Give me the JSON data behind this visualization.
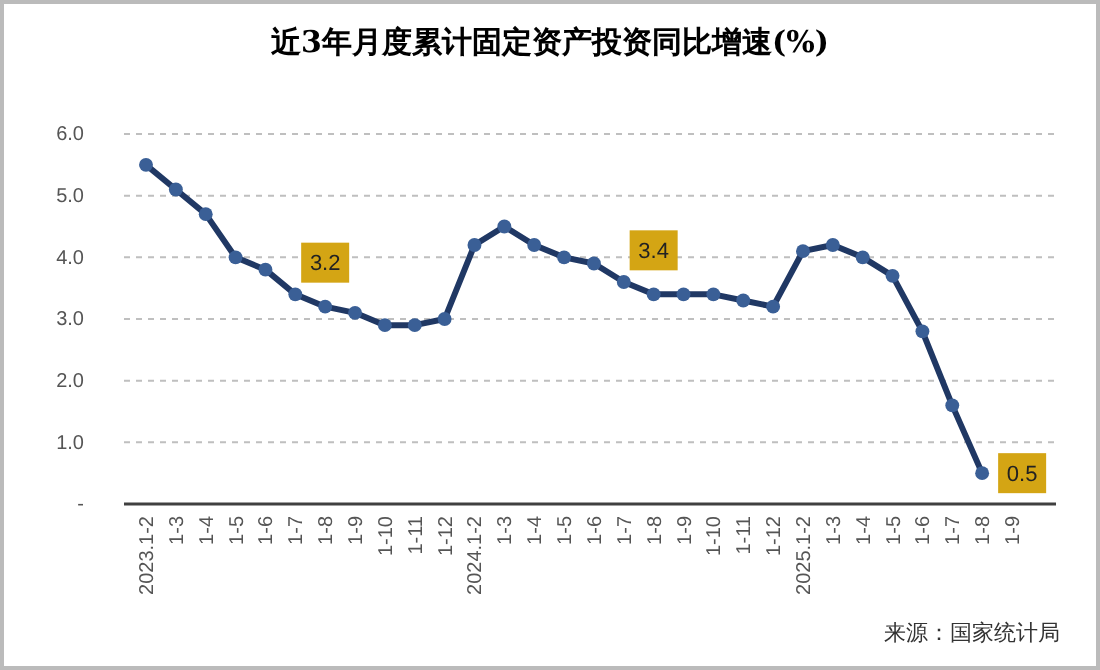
{
  "chart_data": {
    "type": "line",
    "title": "近3年月度累计固定资产投资同比增速(%)",
    "categories": [
      "2023.1-2",
      "1-3",
      "1-4",
      "1-5",
      "1-6",
      "1-7",
      "1-8",
      "1-9",
      "1-10",
      "1-11",
      "1-12",
      "2024.1-2",
      "1-3",
      "1-4",
      "1-5",
      "1-6",
      "1-7",
      "1-8",
      "1-9",
      "1-10",
      "1-11",
      "1-12",
      "2025.1-2",
      "1-3",
      "1-4",
      "1-5",
      "1-6",
      "1-7",
      "1-8",
      "1-9"
    ],
    "series": [
      {
        "color": "#203864",
        "values": [
          5.5,
          5.1,
          4.7,
          4.0,
          3.8,
          3.4,
          3.2,
          3.1,
          2.9,
          2.9,
          3.0,
          4.2,
          4.5,
          4.2,
          4.0,
          3.9,
          3.6,
          3.4,
          3.4,
          3.4,
          3.3,
          3.2,
          4.1,
          4.2,
          4.0,
          3.7,
          2.8,
          1.6,
          0.5,
          null
        ],
        "value_labels": [
          null,
          null,
          null,
          null,
          null,
          null,
          "3.2",
          null,
          null,
          null,
          null,
          null,
          null,
          null,
          null,
          null,
          null,
          "3.4",
          null,
          null,
          null,
          null,
          null,
          null,
          null,
          null,
          null,
          null,
          "0.5",
          null
        ]
      }
    ],
    "ylim": [
      0,
      6
    ],
    "yticks": [
      {
        "value": 0,
        "label": "-"
      },
      {
        "value": 1,
        "label": "1.0"
      },
      {
        "value": 2,
        "label": "2.0"
      },
      {
        "value": 3,
        "label": "3.0"
      },
      {
        "value": 4,
        "label": "4.0"
      },
      {
        "value": 5,
        "label": "5.0"
      },
      {
        "value": 6,
        "label": "6.0"
      }
    ],
    "grid": "y",
    "marker": "circle",
    "line_style": "solid",
    "annotations": [
      "来源：国家统计局"
    ]
  }
}
